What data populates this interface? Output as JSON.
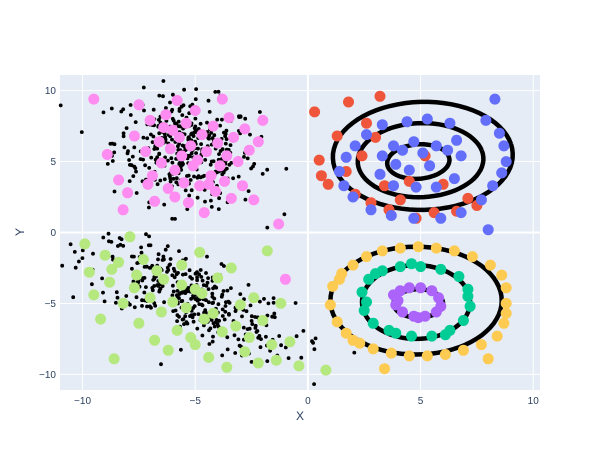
{
  "chart_data": {
    "type": "scatter",
    "xlabel": "X",
    "ylabel": "Y",
    "xlim": [
      -11,
      10.3
    ],
    "ylim": [
      -11.1,
      11.1
    ],
    "xticks": [
      -10,
      -5,
      0,
      5,
      10
    ],
    "yticks": [
      -10,
      -5,
      0,
      5,
      10
    ],
    "grid": true,
    "legend": "none",
    "colors": {
      "plot_bg": "#E5ECF6",
      "grid": "#ffffff",
      "black_points": "#000000",
      "pink": "#FF8CF0",
      "green": "#B6E880",
      "red": "#EF553B",
      "blue": "#636EFA",
      "yellow": "#FECB52",
      "teal": "#00CC96",
      "purple": "#AB63FA",
      "lines": "#000000"
    },
    "series": [
      {
        "type": "points",
        "color": "pink",
        "points": [
          [
            -9.5,
            9.4
          ],
          [
            -8.9,
            5.5
          ],
          [
            -8.4,
            3.7
          ],
          [
            -8.2,
            1.6
          ],
          [
            -8.0,
            2.8
          ],
          [
            -7.7,
            6.8
          ],
          [
            -7.5,
            9.0
          ],
          [
            -7.2,
            5.7
          ],
          [
            -7.0,
            7.9
          ],
          [
            -6.9,
            4.0
          ],
          [
            -6.8,
            2.2
          ],
          [
            -6.6,
            6.4
          ],
          [
            -6.5,
            4.9
          ],
          [
            -6.3,
            8.3
          ],
          [
            -6.2,
            3.1
          ],
          [
            -6.1,
            5.9
          ],
          [
            -6.0,
            7.2
          ],
          [
            -5.9,
            4.4
          ],
          [
            -5.8,
            9.3
          ],
          [
            -5.7,
            6.7
          ],
          [
            -5.6,
            5.4
          ],
          [
            -5.5,
            3.5
          ],
          [
            -5.4,
            7.7
          ],
          [
            -5.3,
            2.1
          ],
          [
            -5.2,
            6.1
          ],
          [
            -5.1,
            4.7
          ],
          [
            -5.0,
            8.6
          ],
          [
            -4.9,
            5.1
          ],
          [
            -4.8,
            3.3
          ],
          [
            -4.7,
            6.9
          ],
          [
            -4.6,
            1.4
          ],
          [
            -4.5,
            5.7
          ],
          [
            -4.3,
            4.0
          ],
          [
            -4.2,
            7.5
          ],
          [
            -4.1,
            2.9
          ],
          [
            -4.0,
            6.3
          ],
          [
            -3.9,
            4.7
          ],
          [
            -3.7,
            3.6
          ],
          [
            -3.6,
            5.4
          ],
          [
            -3.5,
            8.1
          ],
          [
            -3.4,
            2.4
          ],
          [
            -3.3,
            6.7
          ],
          [
            -3.1,
            5.0
          ],
          [
            -2.9,
            3.3
          ],
          [
            -2.8,
            7.3
          ],
          [
            -2.6,
            5.8
          ],
          [
            -2.4,
            2.3
          ],
          [
            -2.2,
            6.4
          ],
          [
            -2.0,
            7.9
          ],
          [
            -1.3,
            0.6
          ],
          [
            -1.0,
            -3.3
          ],
          [
            -7.1,
            3.4
          ],
          [
            -6.4,
            7.4
          ],
          [
            -5.9,
            2.5
          ],
          [
            -4.4,
            3.4
          ],
          [
            -3.8,
            9.4
          ]
        ]
      },
      {
        "type": "points",
        "color": "green",
        "points": [
          [
            -9.9,
            -0.8
          ],
          [
            -9.7,
            -2.8
          ],
          [
            -9.5,
            -4.4
          ],
          [
            -9.2,
            -6.1
          ],
          [
            -9.0,
            -1.6
          ],
          [
            -8.8,
            -3.5
          ],
          [
            -8.6,
            -8.9
          ],
          [
            -8.4,
            -2.1
          ],
          [
            -8.2,
            -5.0
          ],
          [
            -7.9,
            -0.3
          ],
          [
            -7.7,
            -3.9
          ],
          [
            -7.5,
            -6.4
          ],
          [
            -7.3,
            -1.9
          ],
          [
            -7.0,
            -4.6
          ],
          [
            -6.8,
            -7.6
          ],
          [
            -6.7,
            -2.7
          ],
          [
            -6.5,
            -5.6
          ],
          [
            -6.4,
            -3.3
          ],
          [
            -6.2,
            -8.3
          ],
          [
            -6.0,
            -4.9
          ],
          [
            -5.8,
            -6.9
          ],
          [
            -5.6,
            -2.3
          ],
          [
            -5.4,
            -5.3
          ],
          [
            -5.2,
            -7.4
          ],
          [
            -5.0,
            -4.0
          ],
          [
            -4.8,
            -1.4
          ],
          [
            -4.6,
            -6.1
          ],
          [
            -4.4,
            -8.8
          ],
          [
            -4.2,
            -5.7
          ],
          [
            -4.0,
            -3.2
          ],
          [
            -3.8,
            -7.0
          ],
          [
            -3.6,
            -9.5
          ],
          [
            -3.4,
            -2.5
          ],
          [
            -3.2,
            -6.6
          ],
          [
            -3.0,
            -5.1
          ],
          [
            -2.8,
            -8.4
          ],
          [
            -2.6,
            -7.4
          ],
          [
            -2.4,
            -4.6
          ],
          [
            -2.2,
            -9.2
          ],
          [
            -2.0,
            -6.2
          ],
          [
            -1.8,
            -1.3
          ],
          [
            -1.6,
            -7.9
          ],
          [
            -1.4,
            -9.0
          ],
          [
            -1.2,
            -5.0
          ],
          [
            -0.8,
            -7.7
          ],
          [
            -0.4,
            -9.4
          ],
          [
            0.8,
            -9.7
          ],
          [
            -5.6,
            -3.7
          ],
          [
            -7.6,
            -3.0
          ],
          [
            -4.7,
            -4.3
          ],
          [
            -5.0,
            -7.9
          ],
          [
            -8.7,
            -2.6
          ]
        ]
      },
      {
        "type": "lines",
        "shapes": [
          {
            "cx": 5.1,
            "cy": 5.4,
            "rx": 4.0,
            "ry": 3.8,
            "rot": 12
          },
          {
            "cx": 5.0,
            "cy": 5.1,
            "rx": 2.8,
            "ry": 2.6,
            "rot": 14
          },
          {
            "cx": 4.9,
            "cy": 5.0,
            "rx": 1.4,
            "ry": 1.2,
            "rot": 18
          },
          {
            "cx": 4.8,
            "cy": -4.8,
            "rx": 3.8,
            "ry": 3.8,
            "rot": 0
          },
          {
            "cx": 4.8,
            "cy": -4.9,
            "rx": 2.4,
            "ry": 2.6,
            "rot": 0
          },
          {
            "cx": 4.9,
            "cy": -5.0,
            "rx": 1.1,
            "ry": 1.0,
            "rot": 0
          }
        ]
      },
      {
        "type": "points",
        "color": "red",
        "points": [
          [
            0.3,
            8.5
          ],
          [
            0.5,
            5.1
          ],
          [
            0.6,
            4.0
          ],
          [
            0.9,
            3.4
          ],
          [
            1.3,
            6.8
          ],
          [
            1.7,
            4.3
          ],
          [
            1.8,
            9.2
          ],
          [
            2.1,
            2.7
          ],
          [
            2.4,
            5.4
          ],
          [
            2.8,
            2.1
          ],
          [
            3.2,
            9.6
          ],
          [
            3.4,
            3.3
          ],
          [
            3.6,
            1.6
          ],
          [
            4.1,
            2.3
          ],
          [
            4.5,
            3.6
          ],
          [
            4.8,
            1.0
          ],
          [
            5.2,
            5.4
          ],
          [
            5.6,
            1.4
          ],
          [
            6.0,
            3.4
          ],
          [
            6.6,
            1.5
          ],
          [
            7.1,
            2.4
          ],
          [
            7.5,
            1.9
          ],
          [
            3.0,
            6.7
          ],
          [
            2.6,
            7.7
          ]
        ]
      },
      {
        "type": "points",
        "color": "blue",
        "points": [
          [
            8.3,
            9.4
          ],
          [
            7.9,
            7.9
          ],
          [
            8.5,
            7.0
          ],
          [
            8.7,
            6.1
          ],
          [
            8.8,
            5.0
          ],
          [
            8.6,
            4.2
          ],
          [
            8.2,
            3.3
          ],
          [
            7.7,
            2.3
          ],
          [
            6.8,
            1.4
          ],
          [
            5.9,
            1.0
          ],
          [
            4.7,
            1.0
          ],
          [
            3.7,
            1.2
          ],
          [
            2.8,
            1.6
          ],
          [
            2.0,
            2.5
          ],
          [
            1.6,
            3.3
          ],
          [
            1.4,
            4.3
          ],
          [
            1.7,
            5.3
          ],
          [
            2.1,
            6.1
          ],
          [
            2.6,
            6.9
          ],
          [
            3.3,
            7.6
          ],
          [
            4.4,
            7.8
          ],
          [
            5.3,
            8.0
          ],
          [
            6.3,
            7.7
          ],
          [
            6.6,
            6.5
          ],
          [
            6.8,
            5.4
          ],
          [
            6.5,
            3.8
          ],
          [
            5.7,
            3.2
          ],
          [
            4.8,
            3.2
          ],
          [
            3.8,
            3.3
          ],
          [
            3.2,
            4.1
          ],
          [
            3.3,
            5.4
          ],
          [
            3.8,
            6.1
          ],
          [
            4.7,
            6.4
          ],
          [
            5.7,
            6.1
          ],
          [
            6.2,
            5.8
          ],
          [
            5.4,
            4.7
          ],
          [
            4.5,
            4.4
          ],
          [
            3.9,
            4.8
          ],
          [
            4.2,
            5.8
          ],
          [
            5.1,
            5.6
          ],
          [
            8.0,
            0.2
          ]
        ]
      },
      {
        "type": "points",
        "color": "yellow",
        "points": [
          [
            1.0,
            -5.1
          ],
          [
            1.1,
            -3.8
          ],
          [
            1.3,
            -6.3
          ],
          [
            1.5,
            -2.9
          ],
          [
            1.7,
            -7.1
          ],
          [
            2.0,
            -2.3
          ],
          [
            2.3,
            -7.8
          ],
          [
            2.6,
            -1.7
          ],
          [
            2.9,
            -8.2
          ],
          [
            3.3,
            -1.3
          ],
          [
            3.7,
            -8.5
          ],
          [
            4.1,
            -1.1
          ],
          [
            4.5,
            -8.7
          ],
          [
            4.9,
            -1.0
          ],
          [
            5.3,
            -8.7
          ],
          [
            5.7,
            -1.1
          ],
          [
            6.1,
            -8.6
          ],
          [
            6.5,
            -1.3
          ],
          [
            6.9,
            -8.3
          ],
          [
            7.3,
            -1.7
          ],
          [
            7.7,
            -7.9
          ],
          [
            8.1,
            -2.3
          ],
          [
            8.4,
            -7.3
          ],
          [
            8.6,
            -3.0
          ],
          [
            8.7,
            -6.4
          ],
          [
            8.8,
            -3.9
          ],
          [
            8.8,
            -5.0
          ],
          [
            8.8,
            -5.7
          ],
          [
            3.4,
            -9.6
          ],
          [
            8.0,
            -8.9
          ],
          [
            1.4,
            -3.3
          ],
          [
            2.0,
            -7.6
          ]
        ]
      },
      {
        "type": "points",
        "color": "teal",
        "points": [
          [
            2.4,
            -4.2
          ],
          [
            2.5,
            -5.5
          ],
          [
            2.7,
            -3.3
          ],
          [
            2.9,
            -6.4
          ],
          [
            3.3,
            -2.7
          ],
          [
            3.6,
            -6.9
          ],
          [
            4.1,
            -2.4
          ],
          [
            4.6,
            -7.3
          ],
          [
            5.0,
            -2.4
          ],
          [
            5.5,
            -7.3
          ],
          [
            5.9,
            -2.6
          ],
          [
            6.3,
            -6.9
          ],
          [
            6.7,
            -3.1
          ],
          [
            6.9,
            -6.2
          ],
          [
            7.1,
            -4.0
          ],
          [
            7.2,
            -5.2
          ],
          [
            2.6,
            -4.9
          ],
          [
            3.0,
            -2.9
          ],
          [
            4.6,
            -2.2
          ],
          [
            3.9,
            -7.1
          ],
          [
            6.1,
            -7.2
          ],
          [
            7.1,
            -4.5
          ]
        ]
      },
      {
        "type": "points",
        "color": "purple",
        "points": [
          [
            3.8,
            -4.4
          ],
          [
            3.9,
            -5.1
          ],
          [
            4.1,
            -4.1
          ],
          [
            4.2,
            -5.6
          ],
          [
            4.5,
            -3.9
          ],
          [
            4.7,
            -5.9
          ],
          [
            5.0,
            -3.9
          ],
          [
            5.2,
            -5.9
          ],
          [
            5.5,
            -4.1
          ],
          [
            5.7,
            -5.6
          ],
          [
            5.8,
            -4.6
          ],
          [
            5.9,
            -5.2
          ],
          [
            4.0,
            -4.8
          ],
          [
            4.9,
            -6.0
          ]
        ]
      },
      {
        "type": "cloud",
        "color": "black_points",
        "clusters": [
          {
            "cx": -5.4,
            "cy": 5.8,
            "sx": 1.6,
            "sy": 1.9,
            "corr": -0.15,
            "n": 380
          },
          {
            "cx": -5.2,
            "cy": -4.6,
            "sx": 2.3,
            "sy": 2.1,
            "corr": -0.75,
            "n": 390
          }
        ]
      }
    ]
  }
}
